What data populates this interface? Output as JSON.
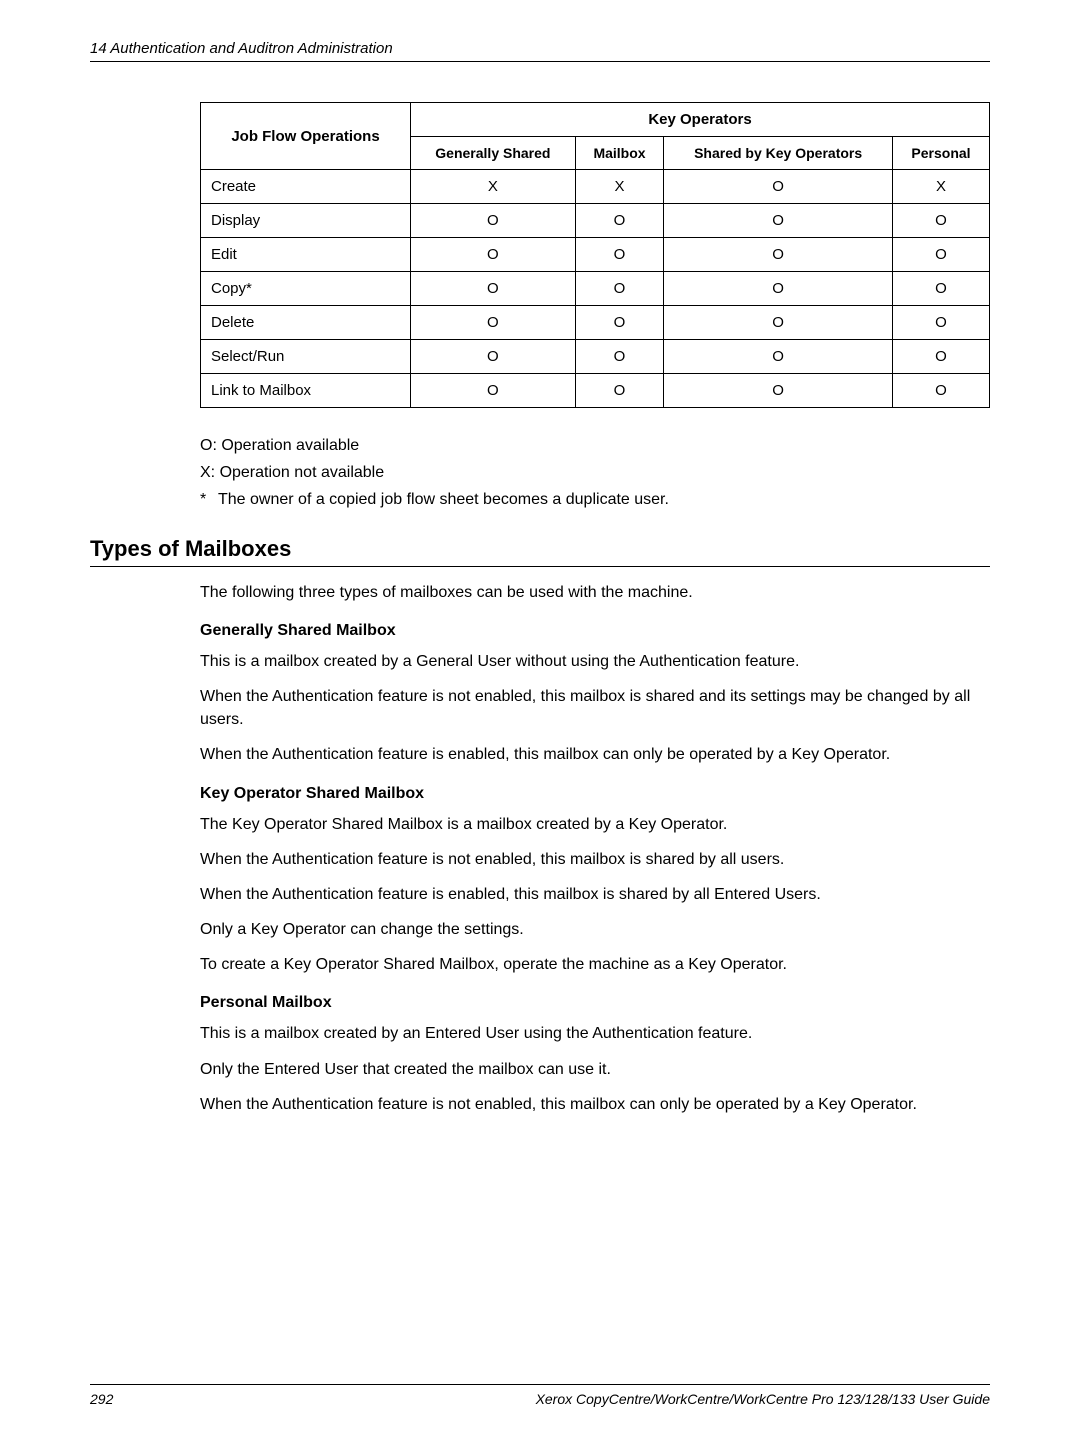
{
  "header": "14  Authentication and Auditron Administration",
  "table": {
    "row_header": "Job Flow Operations",
    "group_header": "Key Operators",
    "columns": [
      "Generally Shared",
      "Mailbox",
      "Shared by Key Operators",
      "Personal"
    ],
    "rows": [
      {
        "label": "Create",
        "cells": [
          "X",
          "X",
          "O",
          "X"
        ]
      },
      {
        "label": "Display",
        "cells": [
          "O",
          "O",
          "O",
          "O"
        ]
      },
      {
        "label": "Edit",
        "cells": [
          "O",
          "O",
          "O",
          "O"
        ]
      },
      {
        "label": "Copy*",
        "cells": [
          "O",
          "O",
          "O",
          "O"
        ]
      },
      {
        "label": "Delete",
        "cells": [
          "O",
          "O",
          "O",
          "O"
        ]
      },
      {
        "label": "Select/Run",
        "cells": [
          "O",
          "O",
          "O",
          "O"
        ]
      },
      {
        "label": "Link to Mailbox",
        "cells": [
          "O",
          "O",
          "O",
          "O"
        ]
      }
    ]
  },
  "legend": {
    "o": "O: Operation available",
    "x": "X: Operation not available",
    "star": "The owner of a copied job flow sheet becomes a duplicate user."
  },
  "section_title": "Types of Mailboxes",
  "intro": "The following three types of mailboxes can be used with the machine.",
  "gsm": {
    "title": "Generally Shared Mailbox",
    "p1": "This is a mailbox created by a General User without using the Authentication feature.",
    "p2": "When the Authentication feature is not enabled, this mailbox is shared and its settings may be changed by all users.",
    "p3": "When the Authentication feature is enabled, this mailbox can only be operated by a Key Operator."
  },
  "kosm": {
    "title": "Key Operator Shared Mailbox",
    "p1": "The Key Operator Shared Mailbox is a mailbox created by a Key Operator.",
    "p2": "When the Authentication feature is not enabled, this mailbox is shared by all users.",
    "p3": "When the Authentication feature is enabled, this mailbox is shared by all Entered Users.",
    "p4": "Only a Key Operator can change the settings.",
    "p5": "To create a Key Operator Shared Mailbox, operate the machine as a Key Operator."
  },
  "pm": {
    "title": "Personal Mailbox",
    "p1": "This is a mailbox created by an Entered User using the Authentication feature.",
    "p2": "Only the Entered User that created the mailbox can use it.",
    "p3": "When the Authentication feature is not enabled, this mailbox can only be operated by a Key Operator."
  },
  "footer": {
    "page": "292",
    "title": "Xerox CopyCentre/WorkCentre/WorkCentre Pro 123/128/133 User Guide"
  }
}
